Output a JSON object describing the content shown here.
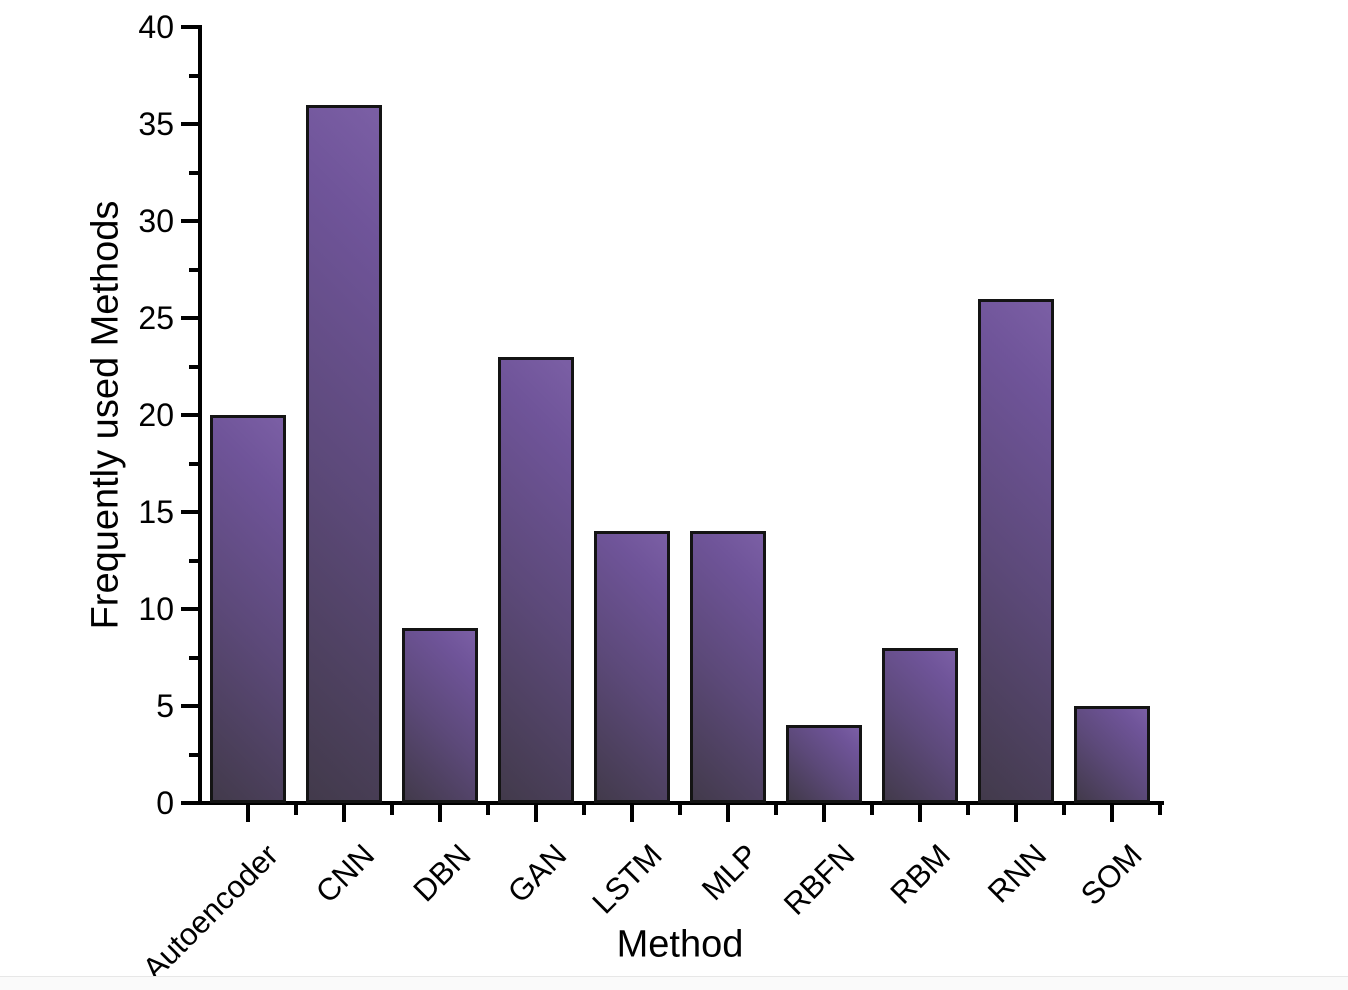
{
  "chart_data": {
    "type": "bar",
    "categories": [
      "Autoencoder",
      "CNN",
      "DBN",
      "GAN",
      "LSTM",
      "MLP",
      "RBFN",
      "RBM",
      "RNN",
      "SOM"
    ],
    "values": [
      20,
      36,
      9,
      23,
      14,
      14,
      4,
      8,
      26,
      5
    ],
    "title": "",
    "xlabel": "Method",
    "ylabel": "Frequently used Methods",
    "ylim": [
      0,
      40
    ],
    "ytick_step": 5,
    "yminor_step": 2.5,
    "ytick_labels": [
      "0",
      "5",
      "10",
      "15",
      "20",
      "25",
      "30",
      "35",
      "40"
    ],
    "grid": false,
    "legend": "none",
    "colors": {
      "bar_gradient_dark": "#423A4B",
      "bar_gradient_mid": "#5C4979",
      "bar_gradient_light": "#7B5FA5",
      "bar_border": "#141414",
      "axis": "#000000",
      "background": "#FFFFFF"
    }
  }
}
